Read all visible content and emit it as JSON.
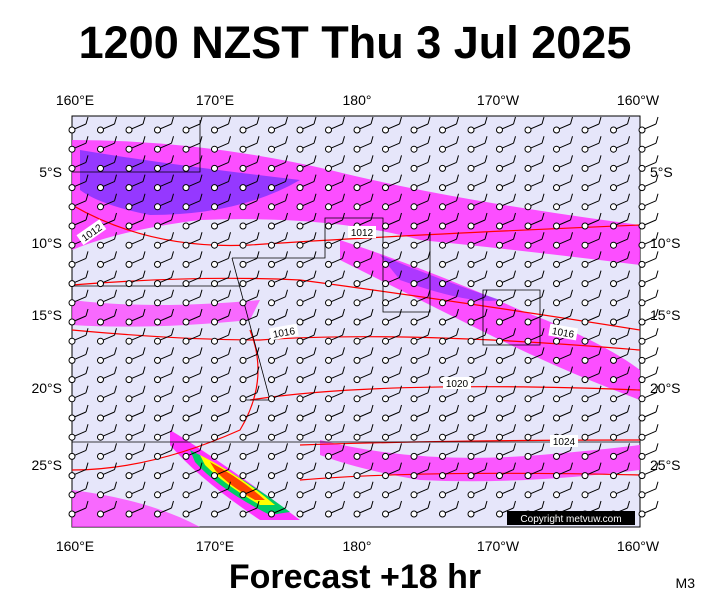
{
  "header": {
    "title": "1200 NZST Thu 3 Jul 2025"
  },
  "map": {
    "lon_labels": [
      "160°E",
      "170°E",
      "180°",
      "170°W",
      "160°W"
    ],
    "lat_labels": [
      "5°S",
      "10°S",
      "15°S",
      "20°S",
      "25°S"
    ],
    "isobar_labels": [
      "1012",
      "1012",
      "1016",
      "1016",
      "1020",
      "1024"
    ],
    "copyright": "Copyright metvuw.com"
  },
  "footer": {
    "forecast": "Forecast +18 hr",
    "code": "M3"
  }
}
